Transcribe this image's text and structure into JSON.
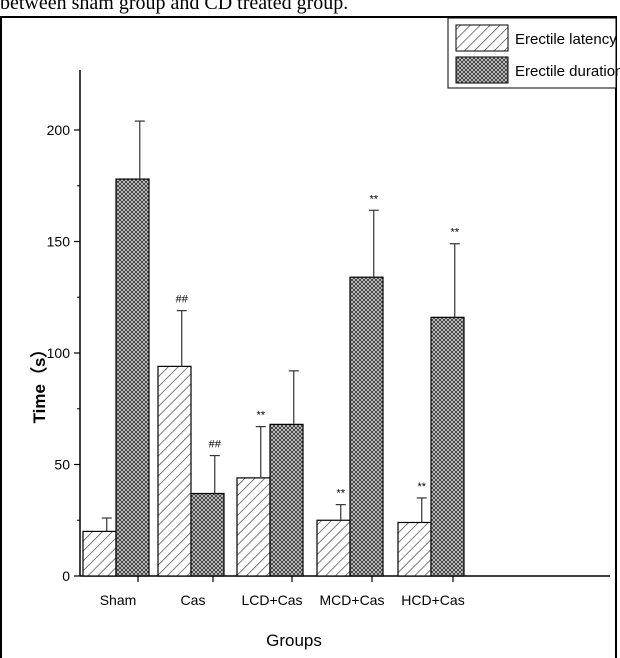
{
  "caption": "between sham group and CD treated group.",
  "chart_data": {
    "type": "bar",
    "categories": [
      "Sham",
      "Cas",
      "LCD+Cas",
      "MCD+Cas",
      "HCD+Cas"
    ],
    "series": [
      {
        "name": "Erectile latency",
        "pattern": "diagonal-hatch",
        "values": [
          20,
          94,
          44,
          25,
          24
        ],
        "errors": [
          6,
          25,
          23,
          7,
          11
        ],
        "annotations": [
          "",
          "##",
          "**",
          "**",
          "**"
        ]
      },
      {
        "name": "Erectile duration",
        "pattern": "cross-hatch",
        "values": [
          178,
          37,
          68,
          134,
          116
        ],
        "errors": [
          26,
          17,
          24,
          30,
          33
        ],
        "annotations": [
          "",
          "##",
          "",
          "**",
          "**"
        ]
      }
    ],
    "title": "",
    "xlabel": "Groups",
    "ylabel": "Time（s）",
    "ylim": [
      0,
      225
    ],
    "yticks": [
      0,
      50,
      100,
      150,
      200
    ],
    "legend_position": "top-right",
    "grid": false
  }
}
